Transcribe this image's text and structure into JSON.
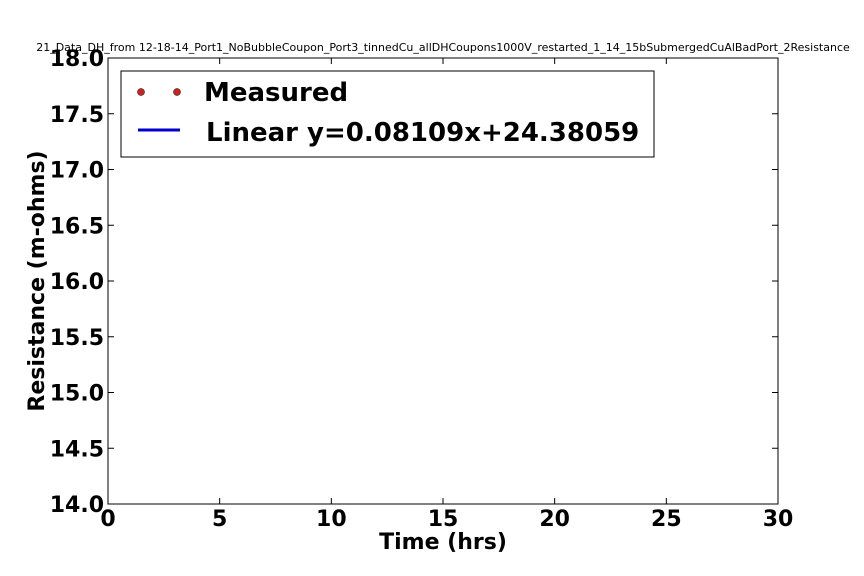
{
  "chart_data": {
    "type": "line",
    "title": "21_Data_DH_from 12-18-14_Port1_NoBubbleCoupon_Port3_tinnedCu_allDHCoupons1000V_restarted_1_14_15bSubmergedCuAlBadPort_2Resistance",
    "xlabel": "Time (hrs)",
    "ylabel": "Resistance (m-ohms)",
    "xlim": [
      0,
      30
    ],
    "ylim": [
      14.0,
      18.0
    ],
    "x_ticks": [
      "0",
      "5",
      "10",
      "15",
      "20",
      "25",
      "30"
    ],
    "y_ticks": [
      "14.0",
      "14.5",
      "15.0",
      "15.5",
      "16.0",
      "16.5",
      "17.0",
      "17.5",
      "18.0"
    ],
    "grid": false,
    "legend_position": "top-left",
    "series": [
      {
        "name": "Measured",
        "style": "markers",
        "color": "#cc2222",
        "x": [],
        "y": []
      },
      {
        "name": "Linear y=0.08109x+24.38059",
        "style": "line",
        "color": "#0000cc",
        "slope": 0.08109,
        "intercept": 24.38059
      }
    ]
  }
}
